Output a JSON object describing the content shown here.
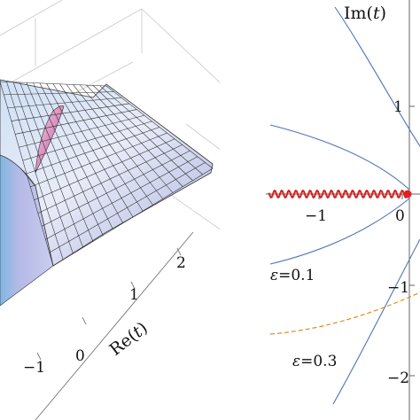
{
  "chart_data": [
    {
      "type": "surface",
      "panel": "left",
      "xlabel": "Re(t)",
      "x_ticks": [
        "−1",
        "0",
        "1",
        "2"
      ],
      "colors": {
        "surface_light": "#e6eaf7",
        "surface_mid": "#b9c2e6",
        "ridge": "#d98fbf",
        "mesh": "#222222"
      }
    },
    {
      "type": "line",
      "panel": "right",
      "ylabel": "Im(t)",
      "x_ticks": [
        "−1",
        "0"
      ],
      "y_ticks": [
        "1",
        "−1",
        "−2"
      ],
      "x_range": [
        -1.6,
        0.3
      ],
      "y_range": [
        -2.1,
        2.0
      ],
      "curves": [
        {
          "label": "ε=0.1",
          "style": "solid",
          "color": "#4f73b8"
        },
        {
          "label": "ε=0.3",
          "style": "dashed",
          "color": "#e08a1e"
        }
      ],
      "branch_cut": {
        "style": "wavy",
        "color": "#d42020",
        "from_x": -1.6,
        "to_x": 0.0,
        "endpoint_x": 0.0
      }
    }
  ],
  "annotations": {
    "eps_01": {
      "symbol": "ε",
      "value": "=0.1"
    },
    "eps_03": {
      "symbol": "ε",
      "value": "=0.3"
    }
  },
  "labels": {
    "re_prefix": "Re(",
    "im_prefix": "Im(",
    "var": "t",
    "suffix": ")"
  }
}
